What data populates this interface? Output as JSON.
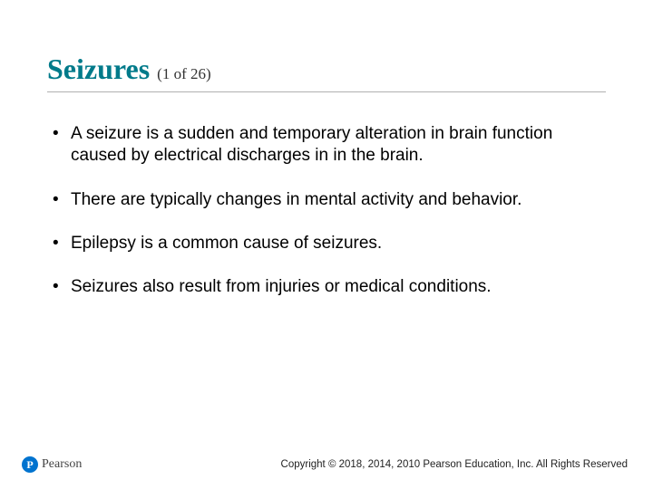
{
  "title": "Seizures",
  "title_count": "(1 of 26)",
  "title_color": "#007a8a",
  "title_fontsize": 32,
  "count_fontsize": 17,
  "body_fontsize": 19,
  "background_color": "#ffffff",
  "divider_color": "#b0b0b0",
  "bullets": [
    "A seizure is a sudden and temporary alteration in brain function caused by electrical discharges in in the brain.",
    "There are typically changes in mental activity and behavior.",
    "Epilepsy is a common cause of seizures.",
    "Seizures also result from injuries or medical conditions."
  ],
  "logo": {
    "mark_letter": "P",
    "mark_bg": "#0073cf",
    "brand": "Pearson"
  },
  "copyright": "Copyright © 2018, 2014, 2010 Pearson Education, Inc. All Rights Reserved"
}
